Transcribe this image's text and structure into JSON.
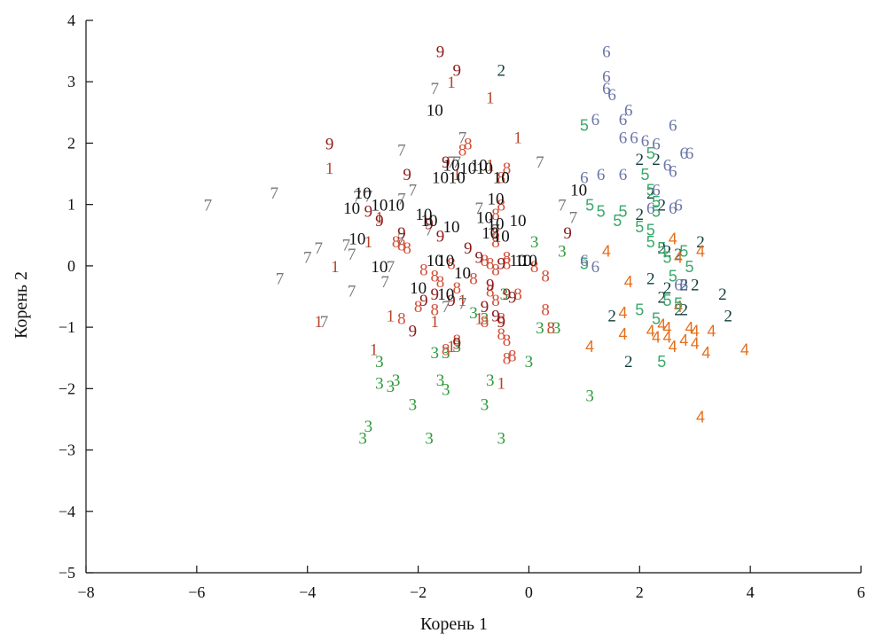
{
  "chart_data": {
    "type": "scatter",
    "title": "",
    "xlabel": "Корень 1",
    "ylabel": "Корень 2",
    "xlim": [
      -8,
      6
    ],
    "ylim": [
      -5,
      4
    ],
    "xticks": [
      -8,
      -6,
      -4,
      -2,
      0,
      2,
      4,
      6
    ],
    "yticks": [
      -5,
      -4,
      -3,
      -2,
      -1,
      0,
      1,
      2,
      3,
      4
    ],
    "xtick_labels": [
      "−8",
      "−6",
      "−4",
      "−2",
      "0",
      "2",
      "4",
      "6"
    ],
    "ytick_labels": [
      "−5",
      "−4",
      "−3",
      "−2",
      "−1",
      "0",
      "1",
      "2",
      "3",
      "4"
    ],
    "grid": false,
    "series": [
      {
        "name": "1",
        "color": "#b5452a",
        "points": [
          [
            -1.4,
            3.0
          ],
          [
            -0.7,
            2.75
          ],
          [
            -0.2,
            2.1
          ],
          [
            -3.6,
            1.6
          ],
          [
            -0.7,
            1.65
          ],
          [
            -1.3,
            1.5
          ],
          [
            -2.7,
            0.8
          ],
          [
            -2.9,
            0.4
          ],
          [
            -3.5,
            0.0
          ],
          [
            -1.2,
            -0.55
          ],
          [
            -2.5,
            -0.8
          ],
          [
            -1.7,
            -0.9
          ],
          [
            -0.9,
            -0.85
          ],
          [
            -3.8,
            -0.9
          ],
          [
            -2.8,
            -1.35
          ],
          [
            -1.4,
            -1.3
          ],
          [
            -0.5,
            -1.9
          ]
        ]
      },
      {
        "name": "2",
        "color": "#0d3d3a",
        "points": [
          [
            -0.5,
            3.2
          ],
          [
            2.0,
            1.75
          ],
          [
            2.3,
            1.75
          ],
          [
            2.2,
            1.2
          ],
          [
            2.4,
            1.0
          ],
          [
            2.0,
            0.85
          ],
          [
            2.4,
            0.3
          ],
          [
            2.5,
            0.25
          ],
          [
            2.7,
            0.2
          ],
          [
            3.1,
            0.4
          ],
          [
            2.2,
            -0.2
          ],
          [
            2.5,
            -0.35
          ],
          [
            2.8,
            -0.3
          ],
          [
            3.0,
            -0.3
          ],
          [
            2.4,
            -0.5
          ],
          [
            2.7,
            -0.7
          ],
          [
            2.8,
            -0.7
          ],
          [
            3.5,
            -0.45
          ],
          [
            3.6,
            -0.8
          ],
          [
            1.5,
            -0.8
          ],
          [
            1.8,
            -1.55
          ]
        ]
      },
      {
        "name": "3",
        "color": "#2e9a3a",
        "points": [
          [
            0.1,
            0.4
          ],
          [
            0.6,
            0.25
          ],
          [
            -0.45,
            -0.45
          ],
          [
            -1.0,
            -0.75
          ],
          [
            -0.8,
            -0.85
          ],
          [
            0.2,
            -1.0
          ],
          [
            0.4,
            -1.0
          ],
          [
            0.5,
            -1.0
          ],
          [
            0.0,
            -1.55
          ],
          [
            -1.7,
            -1.4
          ],
          [
            -1.5,
            -1.4
          ],
          [
            -1.3,
            -1.3
          ],
          [
            -2.7,
            -1.55
          ],
          [
            -2.4,
            -1.85
          ],
          [
            -2.7,
            -1.9
          ],
          [
            -2.5,
            -1.95
          ],
          [
            -1.6,
            -1.85
          ],
          [
            -1.5,
            -2.0
          ],
          [
            -0.7,
            -1.85
          ],
          [
            -0.8,
            -2.25
          ],
          [
            1.1,
            -2.1
          ],
          [
            -2.1,
            -2.25
          ],
          [
            -2.9,
            -2.6
          ],
          [
            -3.0,
            -2.8
          ],
          [
            -1.8,
            -2.8
          ],
          [
            -0.5,
            -2.8
          ]
        ]
      },
      {
        "name": "4",
        "color": "#e56f1c",
        "points": [
          [
            1.4,
            0.25
          ],
          [
            2.6,
            0.45
          ],
          [
            2.7,
            0.15
          ],
          [
            3.1,
            0.25
          ],
          [
            1.8,
            -0.25
          ],
          [
            2.7,
            -0.65
          ],
          [
            1.7,
            -0.75
          ],
          [
            2.2,
            -1.05
          ],
          [
            2.4,
            -0.95
          ],
          [
            2.5,
            -1.0
          ],
          [
            2.9,
            -1.0
          ],
          [
            3.0,
            -1.05
          ],
          [
            3.3,
            -1.05
          ],
          [
            1.7,
            -1.1
          ],
          [
            2.3,
            -1.15
          ],
          [
            2.5,
            -1.15
          ],
          [
            2.8,
            -1.2
          ],
          [
            2.6,
            -1.3
          ],
          [
            3.0,
            -1.25
          ],
          [
            1.1,
            -1.3
          ],
          [
            3.2,
            -1.4
          ],
          [
            3.9,
            -1.35
          ],
          [
            3.1,
            -2.45
          ]
        ]
      },
      {
        "name": "5",
        "color": "#3aa86b",
        "points": [
          [
            1.0,
            2.3
          ],
          [
            2.2,
            1.85
          ],
          [
            2.1,
            1.5
          ],
          [
            2.2,
            1.25
          ],
          [
            2.3,
            0.9
          ],
          [
            1.1,
            1.0
          ],
          [
            1.3,
            0.9
          ],
          [
            1.7,
            0.9
          ],
          [
            2.3,
            1.05
          ],
          [
            2.0,
            0.65
          ],
          [
            2.2,
            0.6
          ],
          [
            1.6,
            0.75
          ],
          [
            2.2,
            0.4
          ],
          [
            2.4,
            0.3
          ],
          [
            2.5,
            0.15
          ],
          [
            2.8,
            0.25
          ],
          [
            1.0,
            0.05
          ],
          [
            2.6,
            -0.15
          ],
          [
            2.9,
            0.0
          ],
          [
            2.0,
            -0.7
          ],
          [
            2.5,
            -0.55
          ],
          [
            2.7,
            -0.6
          ],
          [
            2.3,
            -0.85
          ],
          [
            2.4,
            -1.55
          ]
        ]
      },
      {
        "name": "6",
        "color": "#6b75a8",
        "points": [
          [
            1.4,
            3.5
          ],
          [
            1.4,
            3.1
          ],
          [
            1.4,
            2.9
          ],
          [
            1.5,
            2.8
          ],
          [
            1.8,
            2.55
          ],
          [
            1.7,
            2.4
          ],
          [
            1.2,
            2.4
          ],
          [
            2.6,
            2.3
          ],
          [
            1.7,
            2.1
          ],
          [
            1.9,
            2.1
          ],
          [
            2.1,
            2.05
          ],
          [
            2.3,
            2.0
          ],
          [
            2.8,
            1.85
          ],
          [
            2.9,
            1.85
          ],
          [
            2.5,
            1.65
          ],
          [
            2.6,
            1.55
          ],
          [
            1.3,
            1.5
          ],
          [
            1.7,
            1.5
          ],
          [
            1.0,
            1.45
          ],
          [
            2.3,
            1.25
          ],
          [
            2.2,
            0.95
          ],
          [
            2.6,
            0.95
          ],
          [
            2.7,
            1.0
          ],
          [
            1.0,
            0.1
          ],
          [
            1.2,
            0.0
          ],
          [
            2.7,
            -0.3
          ],
          [
            2.8,
            -0.3
          ]
        ]
      },
      {
        "name": "7",
        "color": "#777777",
        "points": [
          [
            -5.8,
            1.0
          ],
          [
            -4.6,
            1.2
          ],
          [
            -1.7,
            2.9
          ],
          [
            -2.3,
            1.9
          ],
          [
            -1.2,
            2.1
          ],
          [
            -1.3,
            1.7
          ],
          [
            -1.4,
            1.7
          ],
          [
            0.2,
            1.7
          ],
          [
            -2.3,
            1.1
          ],
          [
            -2.1,
            1.25
          ],
          [
            -3.1,
            1.15
          ],
          [
            -2.9,
            1.15
          ],
          [
            -0.9,
            0.95
          ],
          [
            -0.6,
            0.6
          ],
          [
            0.6,
            1.0
          ],
          [
            0.8,
            0.8
          ],
          [
            -2.3,
            0.45
          ],
          [
            -1.8,
            0.6
          ],
          [
            -3.3,
            0.35
          ],
          [
            -3.8,
            0.3
          ],
          [
            -4.0,
            0.15
          ],
          [
            -3.2,
            0.2
          ],
          [
            -2.5,
            0.0
          ],
          [
            -4.5,
            -0.2
          ],
          [
            -3.2,
            -0.4
          ],
          [
            -2.6,
            -0.25
          ],
          [
            -1.5,
            -0.65
          ],
          [
            -1.2,
            -0.6
          ],
          [
            -3.7,
            -0.9
          ]
        ]
      },
      {
        "name": "8",
        "color": "#d24f38",
        "points": [
          [
            -1.2,
            1.9
          ],
          [
            -1.1,
            2.0
          ],
          [
            -0.4,
            1.6
          ],
          [
            -0.5,
            1.45
          ],
          [
            -0.5,
            1.0
          ],
          [
            -0.6,
            0.85
          ],
          [
            -0.6,
            0.55
          ],
          [
            -0.6,
            0.4
          ],
          [
            -2.4,
            0.4
          ],
          [
            -2.3,
            0.35
          ],
          [
            -2.2,
            0.3
          ],
          [
            -1.9,
            -0.05
          ],
          [
            -1.7,
            -0.15
          ],
          [
            -1.4,
            0.05
          ],
          [
            -0.8,
            0.1
          ],
          [
            -0.7,
            0.05
          ],
          [
            -0.4,
            0.15
          ],
          [
            -0.4,
            0.05
          ],
          [
            -0.6,
            -0.05
          ],
          [
            -0.7,
            -0.4
          ],
          [
            -1.0,
            -0.2
          ],
          [
            -1.3,
            -0.35
          ],
          [
            -1.6,
            -0.25
          ],
          [
            0.1,
            0.0
          ],
          [
            0.3,
            -0.15
          ],
          [
            -0.6,
            -0.55
          ],
          [
            -0.2,
            -0.45
          ],
          [
            -0.5,
            -0.85
          ],
          [
            -0.8,
            -0.9
          ],
          [
            -0.5,
            -1.1
          ],
          [
            -0.4,
            -1.2
          ],
          [
            -0.3,
            -1.45
          ],
          [
            -0.4,
            -1.5
          ],
          [
            0.3,
            -0.7
          ],
          [
            0.4,
            -1.0
          ],
          [
            -2.3,
            -0.85
          ],
          [
            -2.0,
            -0.65
          ],
          [
            -1.7,
            -0.7
          ],
          [
            -1.3,
            -1.2
          ],
          [
            -1.5,
            -1.35
          ]
        ]
      },
      {
        "name": "9",
        "color": "#8b1a1a",
        "points": [
          [
            -1.6,
            3.5
          ],
          [
            -1.3,
            3.2
          ],
          [
            -3.6,
            2.0
          ],
          [
            -2.2,
            1.5
          ],
          [
            -1.5,
            1.7
          ],
          [
            -2.9,
            0.9
          ],
          [
            -2.7,
            0.75
          ],
          [
            -2.3,
            0.55
          ],
          [
            -1.8,
            0.7
          ],
          [
            -1.6,
            0.5
          ],
          [
            -1.1,
            0.3
          ],
          [
            -0.9,
            0.15
          ],
          [
            -0.5,
            0.05
          ],
          [
            -0.7,
            -0.3
          ],
          [
            -0.4,
            -0.45
          ],
          [
            -0.3,
            -0.5
          ],
          [
            -1.7,
            -0.45
          ],
          [
            -1.9,
            -0.55
          ],
          [
            -1.4,
            -0.55
          ],
          [
            -0.8,
            -0.65
          ],
          [
            -0.6,
            -0.8
          ],
          [
            -0.5,
            -0.9
          ],
          [
            -2.1,
            -1.05
          ],
          [
            -1.3,
            -1.25
          ],
          [
            0.7,
            0.55
          ]
        ]
      },
      {
        "name": "10",
        "color": "#111111",
        "points": [
          [
            -1.7,
            2.55
          ],
          [
            -1.4,
            1.65
          ],
          [
            -1.1,
            1.6
          ],
          [
            -0.9,
            1.65
          ],
          [
            -0.8,
            1.6
          ],
          [
            -1.6,
            1.45
          ],
          [
            -1.3,
            1.45
          ],
          [
            -0.5,
            1.45
          ],
          [
            -3.0,
            1.2
          ],
          [
            -2.7,
            1.0
          ],
          [
            -2.4,
            1.0
          ],
          [
            -3.2,
            0.95
          ],
          [
            -1.9,
            0.85
          ],
          [
            -1.8,
            0.75
          ],
          [
            -0.6,
            1.1
          ],
          [
            -0.8,
            0.8
          ],
          [
            -0.6,
            0.7
          ],
          [
            -0.2,
            0.75
          ],
          [
            -1.4,
            0.65
          ],
          [
            -0.7,
            0.55
          ],
          [
            -0.5,
            0.5
          ],
          [
            -3.1,
            0.45
          ],
          [
            -2.7,
            0.0
          ],
          [
            -1.7,
            0.1
          ],
          [
            -1.5,
            0.1
          ],
          [
            -1.2,
            -0.1
          ],
          [
            -0.2,
            0.1
          ],
          [
            -0.1,
            0.1
          ],
          [
            0.0,
            0.1
          ],
          [
            -2.0,
            -0.35
          ],
          [
            -1.5,
            -0.45
          ],
          [
            0.9,
            1.25
          ]
        ]
      }
    ]
  }
}
